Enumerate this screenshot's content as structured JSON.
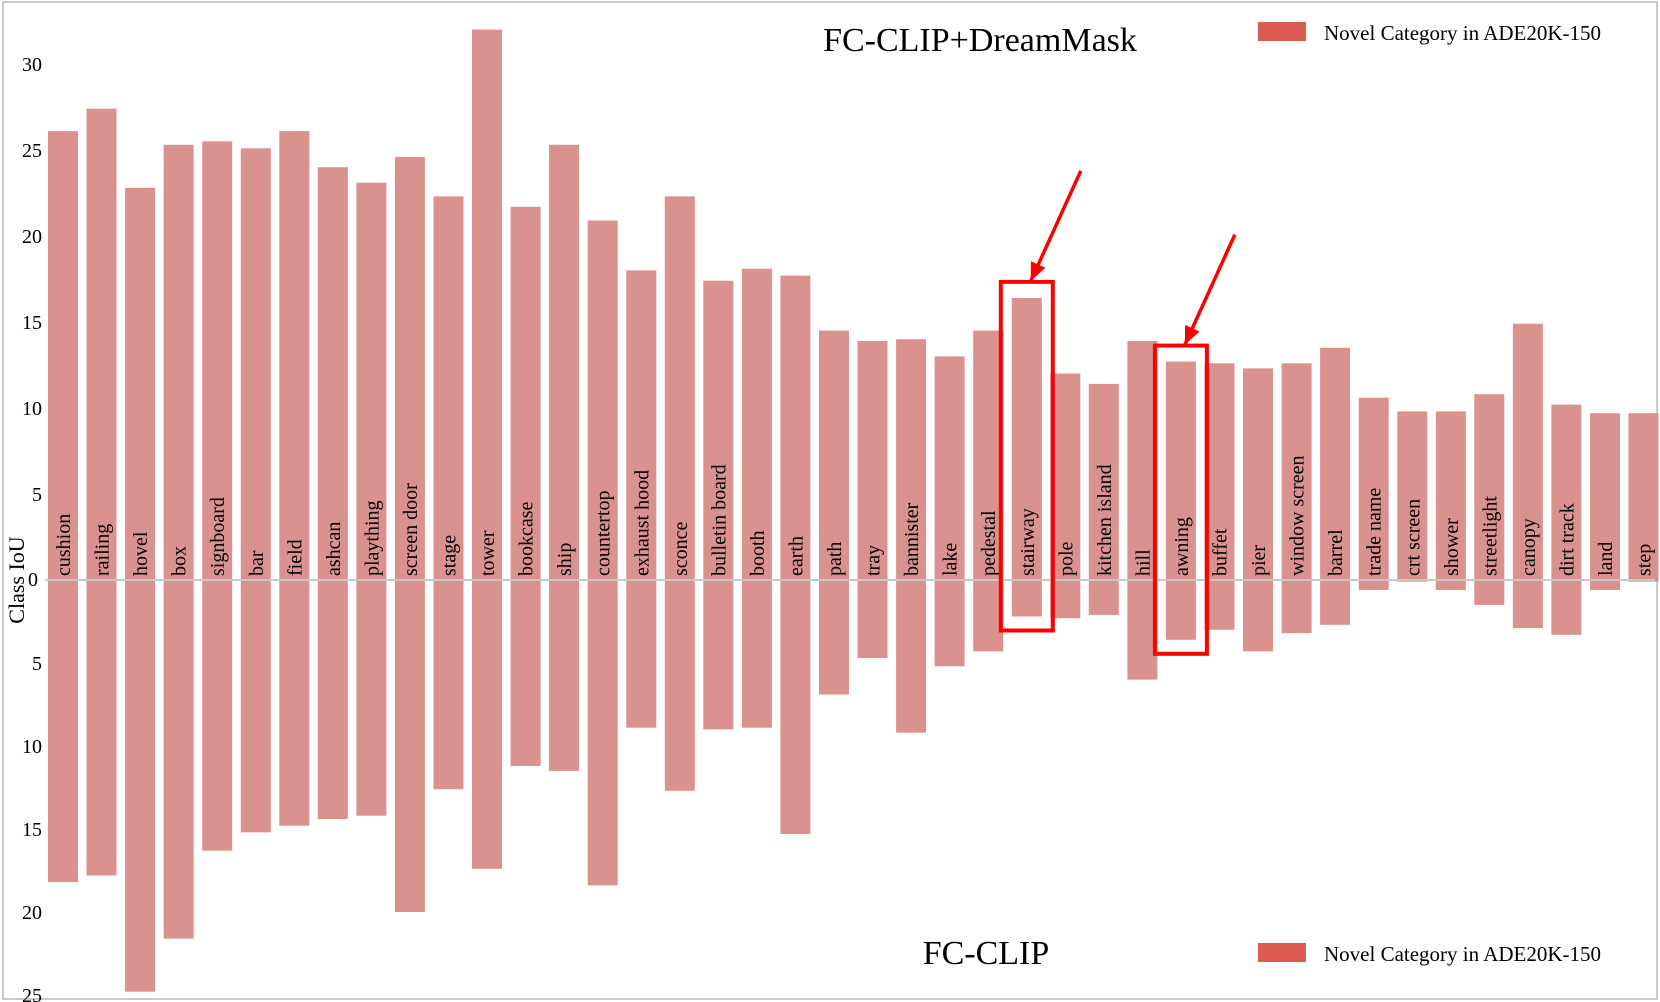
{
  "chart_data": {
    "type": "bar",
    "top_title": "FC-CLIP+DreamMask",
    "bottom_title": "FC-CLIP",
    "ylabel": "Class IoU",
    "legend_label": "Novel Category in ADE20K-150",
    "legend_color": "#dd5b53",
    "bar_color": "#d9928e",
    "highlight_color": "#ff0000",
    "top_ylim": [
      0,
      32
    ],
    "bottom_ylim": [
      0,
      25
    ],
    "top_ticks": [
      5,
      10,
      15,
      20,
      25,
      30
    ],
    "bottom_ticks": [
      5,
      10,
      15,
      20,
      25
    ],
    "zero_label": "0",
    "categories": [
      "cushion",
      "railing",
      "hovel",
      "box",
      "signboard",
      "bar",
      "field",
      "ashcan",
      "plaything",
      "screen door",
      "stage",
      "tower",
      "bookcase",
      "ship",
      "countertop",
      "exhaust hood",
      "sconce",
      "bulletin board",
      "booth",
      "earth",
      "path",
      "tray",
      "bannister",
      "lake",
      "pedestal",
      "stairway",
      "pole",
      "kitchen island",
      "hill",
      "awning",
      "buffet",
      "pier",
      "window screen",
      "barrel",
      "trade name",
      "crt screen",
      "shower",
      "streetlight",
      "canopy",
      "dirt track",
      "land",
      "step"
    ],
    "series": [
      {
        "name": "FC-CLIP+DreamMask",
        "values": [
          26.1,
          27.4,
          22.8,
          25.3,
          25.5,
          25.1,
          26.1,
          24.0,
          23.1,
          24.6,
          22.3,
          32.0,
          21.7,
          25.3,
          20.9,
          18.0,
          22.3,
          17.4,
          18.1,
          17.7,
          14.5,
          13.9,
          14.0,
          13.0,
          14.5,
          16.4,
          12.0,
          11.4,
          13.9,
          12.7,
          12.6,
          12.3,
          12.6,
          13.5,
          10.6,
          9.8,
          9.8,
          10.8,
          14.9,
          10.2,
          9.7,
          9.7
        ]
      },
      {
        "name": "FC-CLIP",
        "values": [
          18.2,
          17.8,
          24.8,
          21.6,
          16.3,
          15.2,
          14.8,
          14.4,
          14.2,
          20.0,
          12.6,
          17.4,
          11.2,
          11.5,
          18.4,
          8.9,
          12.7,
          9.0,
          8.9,
          15.3,
          6.9,
          4.7,
          9.2,
          5.2,
          4.3,
          2.2,
          2.3,
          2.1,
          6.0,
          3.6,
          3.0,
          4.3,
          3.2,
          2.7,
          0.6,
          0.1,
          0.6,
          1.5,
          2.9,
          3.3,
          0.6,
          0.1
        ]
      }
    ],
    "highlighted": [
      "stairway",
      "awning"
    ]
  }
}
